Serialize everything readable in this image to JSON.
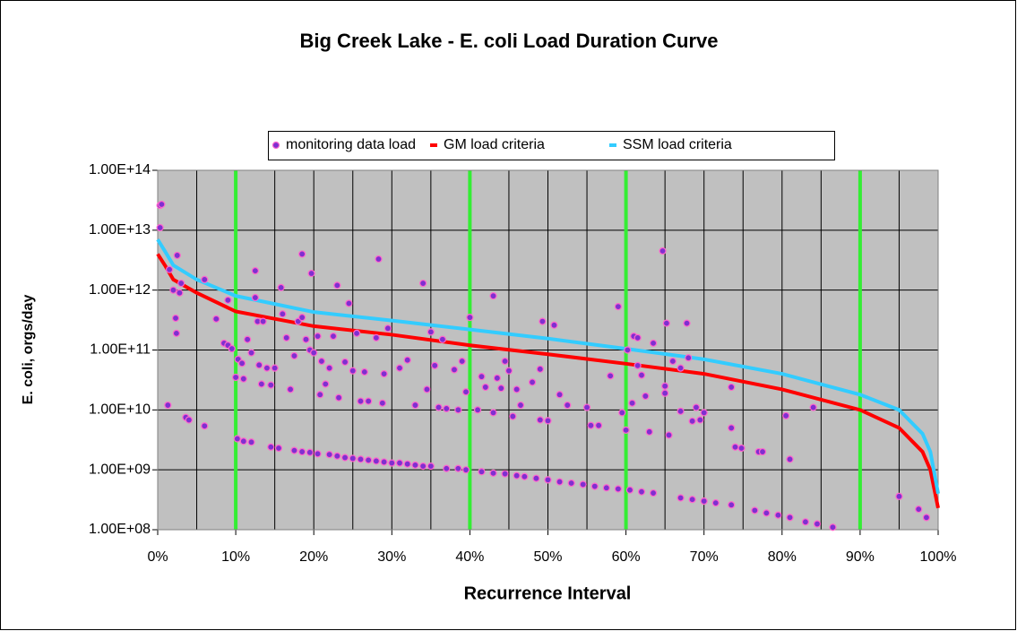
{
  "chart_data": {
    "type": "scatter",
    "title": "Big Creek Lake - E. coli Load Duration Curve",
    "x_label": "Recurrence Interval",
    "y_label": "E. coli, orgs/day",
    "xlim": [
      0,
      100
    ],
    "xticks": [
      {
        "value": 0,
        "label": "0%"
      },
      {
        "value": 10,
        "label": "10%"
      },
      {
        "value": 20,
        "label": "20%"
      },
      {
        "value": 30,
        "label": "30%"
      },
      {
        "value": 40,
        "label": "40%"
      },
      {
        "value": 50,
        "label": "50%"
      },
      {
        "value": 60,
        "label": "60%"
      },
      {
        "value": 70,
        "label": "70%"
      },
      {
        "value": 80,
        "label": "80%"
      },
      {
        "value": 90,
        "label": "90%"
      },
      {
        "value": 100,
        "label": "100%"
      }
    ],
    "x_minor_grid": [
      5,
      15,
      25,
      35,
      45,
      55,
      65,
      75,
      85,
      95
    ],
    "ylim": [
      100000000,
      100000000000000
    ],
    "yscale": "log",
    "yticks": [
      {
        "value": 100000000,
        "label": "1.00E+08"
      },
      {
        "value": 1000000000,
        "label": "1.00E+09"
      },
      {
        "value": 10000000000,
        "label": "1.00E+10"
      },
      {
        "value": 100000000000,
        "label": "1.00E+11"
      },
      {
        "value": 1000000000000,
        "label": "1.00E+12"
      },
      {
        "value": 10000000000000,
        "label": "1.00E+13"
      },
      {
        "value": 100000000000000,
        "label": "1.00E+14"
      }
    ],
    "grid": true,
    "plot_background": "#c0c0c0",
    "legend": "top",
    "reference_lines": {
      "x": [
        10,
        40,
        60,
        90
      ],
      "color": "#33ee33"
    },
    "series": [
      {
        "name": "monitoring data load",
        "mark": "marker",
        "color": "#7f2fd0",
        "edge_color": "#ff66cc",
        "x": [
          0.3,
          0.5,
          0.3,
          1.5,
          2,
          2.5,
          2.3,
          2.4,
          3,
          2.8,
          1.3,
          3.6,
          4,
          6,
          6,
          7.5,
          8.5,
          9,
          9.5,
          9,
          10,
          10.3,
          10.8,
          11,
          11.5,
          12,
          12.5,
          12.5,
          12.8,
          13,
          13.3,
          13.5,
          14,
          14.5,
          15,
          15.8,
          16,
          16.5,
          17,
          17.5,
          18,
          18.5,
          18.5,
          19,
          19.5,
          19.7,
          20,
          20.5,
          20.8,
          21,
          21.5,
          22,
          22.5,
          23,
          23.2,
          24,
          24.5,
          25,
          25.5,
          26,
          26.5,
          27,
          28,
          28.3,
          28.8,
          29,
          29.5,
          31,
          32,
          33,
          34,
          34.5,
          35,
          35.5,
          36,
          36.5,
          37,
          38,
          38.5,
          39,
          39.5,
          40,
          41,
          41.5,
          42,
          43,
          43,
          43.5,
          44,
          44.5,
          45,
          45.5,
          46,
          46.5,
          48,
          49,
          49,
          49.3,
          50,
          50.8,
          51.5,
          52.5,
          55,
          55.5,
          56.5,
          58,
          59,
          59.5,
          60,
          60.2,
          60.8,
          61,
          61.5,
          61.5,
          62,
          62.5,
          63,
          63.5,
          64.7,
          65,
          65,
          65.2,
          65.5,
          66,
          67,
          67,
          67.8,
          68,
          68.5,
          69,
          69.5,
          70,
          73.5,
          73.5,
          74,
          74.8,
          77,
          77.5,
          80.5,
          81,
          84,
          95,
          97.5,
          98.5,
          10.2,
          11,
          12,
          14.5,
          15.5,
          17.5,
          18.5,
          19.5,
          20.5,
          22,
          23,
          24,
          25,
          26,
          27,
          28,
          29,
          30,
          31,
          32,
          33,
          34,
          35,
          37,
          38.5,
          39.5,
          41.5,
          43,
          44.5,
          46,
          47,
          48.5,
          50,
          51.5,
          53,
          54.5,
          56,
          57.5,
          59,
          60.5,
          62,
          63.5,
          67,
          68.5,
          70,
          71.5,
          73.5,
          76.5,
          78,
          79.5,
          81,
          83,
          84.5,
          86.5
        ],
        "values": [
          26000000000000,
          27000000000000,
          11000000000000,
          2200000000000,
          1000000000000,
          3800000000000,
          340000000000,
          190000000000,
          1300000000000,
          900000000000,
          12000000000,
          7500000000,
          6800000000,
          5400000000,
          1500000000000,
          330000000000,
          130000000000,
          120000000000,
          105000000000,
          680000000000,
          35000000000,
          70000000000,
          60000000000,
          33000000000,
          150000000000,
          90000000000,
          2100000000000,
          750000000000,
          300000000000,
          56000000000,
          27000000000,
          300000000000,
          50000000000,
          26000000000,
          50000000000,
          1100000000000,
          400000000000,
          160000000000,
          22000000000,
          80000000000,
          300000000000,
          350000000000,
          4000000000000,
          150000000000,
          100000000000,
          1900000000000,
          90000000000,
          170000000000,
          18000000000,
          65000000000,
          27000000000,
          50000000000,
          170000000000,
          1200000000000,
          16000000000,
          63000000000,
          600000000000,
          45000000000,
          190000000000,
          14000000000,
          43000000000,
          14000000000,
          160000000000,
          3300000000000,
          13000000000,
          40000000000,
          230000000000,
          50000000000,
          68000000000,
          12000000000,
          1300000000000,
          22000000000,
          200000000000,
          55000000000,
          11000000000,
          150000000000,
          10500000000,
          47000000000,
          10000000000,
          65000000000,
          20000000000,
          350000000000,
          10000000000,
          36000000000,
          24000000000,
          800000000000,
          9000000000,
          34000000000,
          23000000000,
          65000000000,
          45000000000,
          7800000000,
          22000000000,
          12000000000,
          29000000000,
          6800000000,
          48000000000,
          300000000000,
          6600000000,
          260000000000,
          18000000000,
          12000000000,
          11000000000,
          5500000000,
          5500000000,
          37000000000,
          530000000000,
          9000000000,
          4600000000,
          100000000000,
          13000000000,
          170000000000,
          160000000000,
          55000000000,
          38000000000,
          17000000000,
          4300000000,
          130000000000,
          4500000000000,
          25000000000,
          19000000000,
          280000000000,
          3800000000,
          65000000000,
          50000000000,
          9500000000,
          280000000000,
          74000000000,
          6500000000,
          11000000000,
          6800000000,
          9000000000,
          24000000000,
          5000000000,
          2400000000,
          2300000000,
          2000000000,
          2000000000,
          8000000000,
          1500000000,
          11000000000,
          360000000,
          220000000,
          160000000,
          3300000000,
          3000000000,
          2900000000,
          2400000000,
          2300000000,
          2100000000,
          2000000000,
          1950000000,
          1850000000,
          1800000000,
          1700000000,
          1600000000,
          1550000000,
          1500000000,
          1450000000,
          1400000000,
          1350000000,
          1300000000,
          1300000000,
          1250000000,
          1200000000,
          1150000000,
          1150000000,
          1050000000,
          1050000000,
          1000000000,
          930000000,
          880000000,
          860000000,
          800000000,
          770000000,
          720000000,
          680000000,
          630000000,
          600000000,
          570000000,
          530000000,
          500000000,
          480000000,
          460000000,
          430000000,
          410000000,
          340000000,
          320000000,
          300000000,
          280000000,
          260000000,
          210000000,
          190000000,
          175000000,
          160000000,
          135000000,
          125000000,
          110000000
        ]
      },
      {
        "name": "GM load criteria",
        "mark": "line",
        "color": "#ff0000",
        "x": [
          0,
          1,
          2,
          5,
          10,
          20,
          30,
          40,
          50,
          60,
          70,
          80,
          90,
          95,
          98,
          99,
          100
        ],
        "values": [
          4000000000000,
          2500000000000,
          1500000000000,
          900000000000,
          440000000000,
          250000000000,
          180000000000,
          120000000000,
          85000000000,
          59000000000,
          40000000000,
          22000000000,
          10000000000,
          5000000000,
          2000000000,
          1000000000,
          230000000
        ]
      },
      {
        "name": "SSM load criteria",
        "mark": "line",
        "color": "#33ccff",
        "x": [
          0,
          1,
          2,
          5,
          10,
          20,
          30,
          40,
          50,
          60,
          70,
          80,
          90,
          95,
          98,
          99,
          100
        ],
        "values": [
          7000000000000,
          4300000000000,
          2600000000000,
          1500000000000,
          800000000000,
          430000000000,
          310000000000,
          220000000000,
          155000000000,
          105000000000,
          70000000000,
          40000000000,
          18000000000,
          10000000000,
          4000000000,
          2000000000,
          400000000
        ]
      }
    ]
  }
}
